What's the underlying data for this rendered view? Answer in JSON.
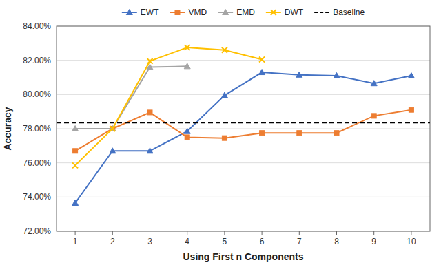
{
  "chart_data": {
    "type": "line",
    "xlabel": "Using First n Components",
    "ylabel": "Accuracy",
    "x": [
      1,
      2,
      3,
      4,
      5,
      6,
      7,
      8,
      9,
      10
    ],
    "xlim": [
      0.5,
      10.5
    ],
    "xticks": [
      1,
      2,
      3,
      4,
      5,
      6,
      7,
      8,
      9,
      10
    ],
    "ylim": [
      0.72,
      0.84
    ],
    "yticks": [
      {
        "value": 0.72,
        "label": "72.00%"
      },
      {
        "value": 0.74,
        "label": "74.00%"
      },
      {
        "value": 0.76,
        "label": "76.00%"
      },
      {
        "value": 0.78,
        "label": "78.00%"
      },
      {
        "value": 0.8,
        "label": "80.00%"
      },
      {
        "value": 0.82,
        "label": "82.00%"
      },
      {
        "value": 0.84,
        "label": "84.00%"
      }
    ],
    "grid": true,
    "legend": "top",
    "series": [
      {
        "name": "EWT",
        "color": "#4472C4",
        "marker": "triangle",
        "values": [
          0.7365,
          0.767,
          0.767,
          0.7785,
          0.7995,
          0.813,
          0.8115,
          0.811,
          0.8065,
          0.811
        ]
      },
      {
        "name": "VMD",
        "color": "#ED7D31",
        "marker": "square",
        "values": [
          0.767,
          0.78,
          0.7895,
          0.775,
          0.7745,
          0.7775,
          0.7775,
          0.7775,
          0.7875,
          0.791
        ]
      },
      {
        "name": "EMD",
        "color": "#A5A5A5",
        "marker": "triangle",
        "values": [
          0.78,
          0.78,
          0.816,
          0.8165,
          null,
          null,
          null,
          null,
          null,
          null
        ]
      },
      {
        "name": "DWT",
        "color": "#FFC000",
        "marker": "x",
        "values": [
          0.7585,
          0.78,
          0.8195,
          0.8275,
          0.826,
          0.8205,
          null,
          null,
          null,
          null
        ]
      },
      {
        "name": "Baseline",
        "type": "hline",
        "color": "#000000",
        "line_style": "dashed",
        "value": 0.7835
      }
    ]
  }
}
